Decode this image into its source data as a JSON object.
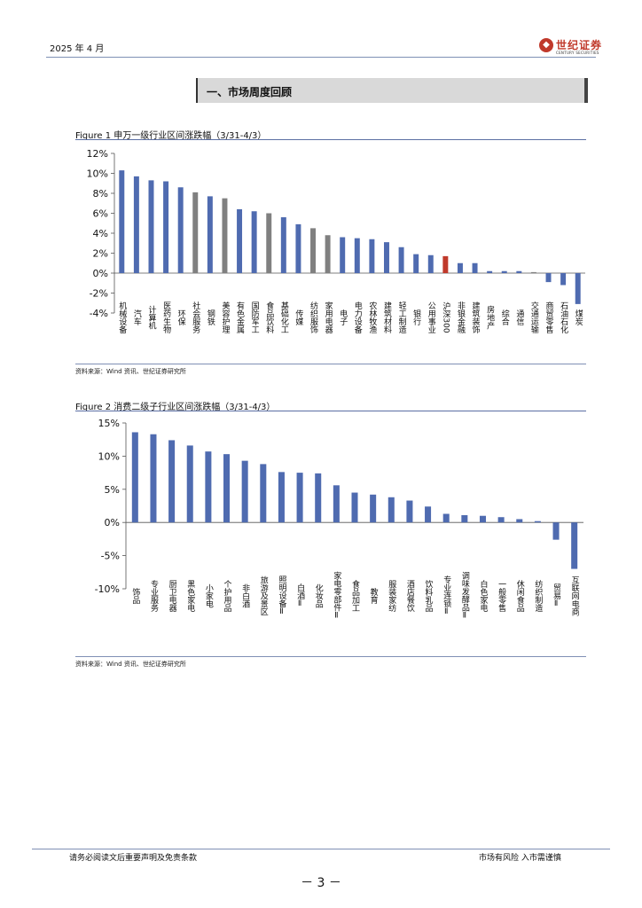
{
  "header": {
    "date": "2025 年 4 月",
    "brand_cn": "世纪证券",
    "brand_en": "CENTURY SECURITIES"
  },
  "section_title": "一、市场周度回顾",
  "figures": [
    {
      "caption": "Figure 1  申万一级行业区间涨跌幅（3/31-4/3）",
      "source": "资料来源：Wind 资讯、世纪证券研究所"
    },
    {
      "caption": "Figure 2 消费二级子行业区间涨跌幅（3/31-4/3）",
      "source": "资料来源：Wind 资讯、世纪证券研究所"
    }
  ],
  "chart_data": [
    {
      "type": "bar",
      "title": "",
      "ylim": [
        -4,
        12
      ],
      "yticks": [
        -4,
        -2,
        0,
        2,
        4,
        6,
        8,
        10,
        12
      ],
      "ytick_format": "percent",
      "grid": false,
      "colors": {
        "default": "#4f6bb0",
        "highlight": "#808080",
        "benchmark": "#c0392b"
      },
      "categories": [
        "机械设备",
        "汽车",
        "计算机",
        "医药生物",
        "环保",
        "社会服务",
        "钢铁",
        "美容护理",
        "有色金属",
        "国防军工",
        "食品饮料",
        "基础化工",
        "传媒",
        "纺织服饰",
        "家用电器",
        "电子",
        "电力设备",
        "农林牧渔",
        "建筑材料",
        "轻工制造",
        "银行",
        "公用事业",
        "沪深300",
        "非银金融",
        "建筑装饰",
        "房地产",
        "综合",
        "通信",
        "交通运输",
        "商贸零售",
        "石油石化",
        "煤炭"
      ],
      "values": [
        10.3,
        9.7,
        9.3,
        9.2,
        8.6,
        8.1,
        7.7,
        7.5,
        6.4,
        6.2,
        6.0,
        5.6,
        4.9,
        4.5,
        3.8,
        3.6,
        3.5,
        3.4,
        3.1,
        2.6,
        1.9,
        1.8,
        1.7,
        1.0,
        1.0,
        0.2,
        0.2,
        0.2,
        0.1,
        -0.9,
        -1.2,
        -3.1
      ],
      "bar_color_keys": [
        "default",
        "default",
        "default",
        "default",
        "default",
        "highlight",
        "default",
        "highlight",
        "default",
        "default",
        "highlight",
        "default",
        "default",
        "highlight",
        "highlight",
        "default",
        "default",
        "default",
        "default",
        "default",
        "default",
        "default",
        "benchmark",
        "default",
        "default",
        "default",
        "default",
        "default",
        "highlight",
        "default",
        "default",
        "default"
      ]
    },
    {
      "type": "bar",
      "title": "",
      "ylim": [
        -10,
        15
      ],
      "yticks": [
        -10,
        -5,
        0,
        5,
        10,
        15
      ],
      "ytick_format": "percent",
      "grid": false,
      "colors": {
        "default": "#4f6bb0"
      },
      "categories": [
        "饰品",
        "专业服务",
        "厨卫电器",
        "黑色家电",
        "小家电",
        "个护用品",
        "非白酒",
        "旅游及景区",
        "照明设备Ⅱ",
        "白酒Ⅱ",
        "化妆品",
        "家电零部件Ⅱ",
        "食品加工",
        "教育",
        "服装家纺",
        "酒店餐饮",
        "饮料乳品",
        "专业连锁Ⅱ",
        "调味发酵品Ⅱ",
        "白色家电",
        "一般零售",
        "休闲食品",
        "纺织制造",
        "贸易Ⅱ",
        "互联网电商"
      ],
      "values": [
        13.6,
        13.3,
        12.4,
        11.6,
        10.7,
        10.3,
        9.3,
        8.8,
        7.6,
        7.5,
        7.4,
        5.6,
        4.5,
        4.2,
        3.8,
        3.3,
        2.4,
        1.3,
        1.1,
        1.0,
        0.8,
        0.5,
        0.2,
        -2.6,
        -7.0
      ]
    }
  ],
  "footer": {
    "left": "请务必阅读文后重要声明及免责条款",
    "right": "市场有风险 入市需谨慎",
    "page": "－ 3 －"
  }
}
